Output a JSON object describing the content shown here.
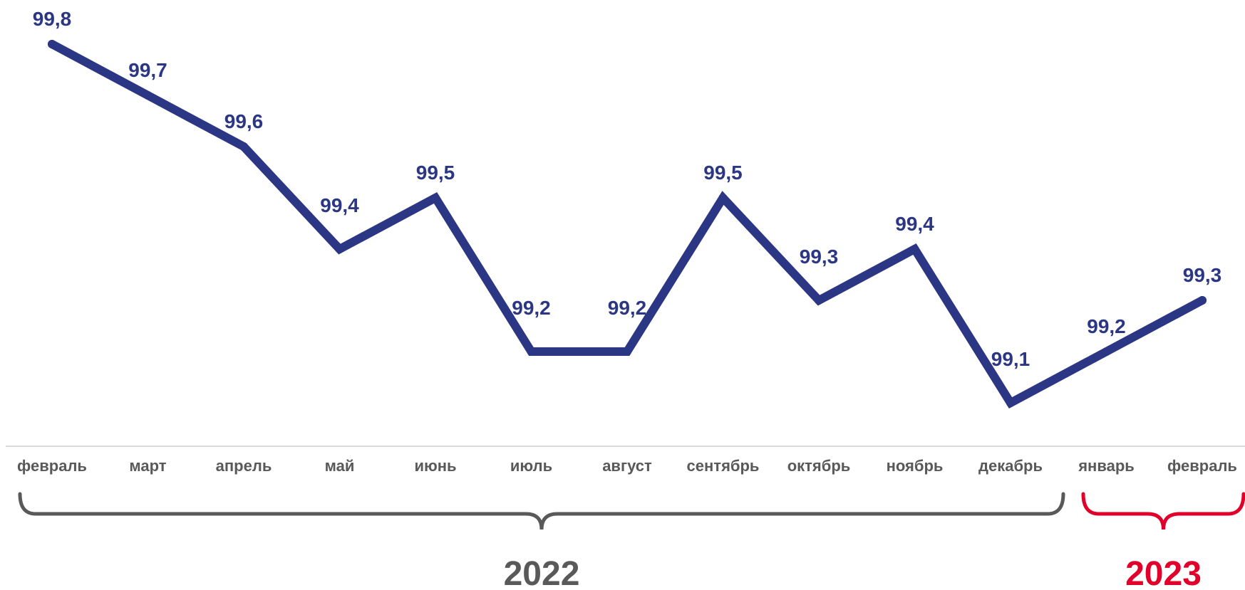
{
  "colors": {
    "line": "#2b3784",
    "axis": "#d9d9d9",
    "tick_text": "#595959",
    "year_2022": "#595959",
    "year_2023": "#e0002a"
  },
  "chart_data": {
    "type": "line",
    "title": "",
    "xlabel": "",
    "ylabel": "",
    "grid": false,
    "legend": "none",
    "categories": [
      "февраль",
      "март",
      "апрель",
      "май",
      "июнь",
      "июль",
      "август",
      "сентябрь",
      "октябрь",
      "ноябрь",
      "декабрь",
      "январь",
      "февраль"
    ],
    "series": [
      {
        "values": [
          99.8,
          99.7,
          99.6,
          99.4,
          99.5,
          99.2,
          99.2,
          99.5,
          99.3,
          99.4,
          99.1,
          99.2,
          99.3
        ],
        "labels": [
          "99,8",
          "99,7",
          "99,6",
          "99,4",
          "99,5",
          "99,2",
          "99,2",
          "99,5",
          "99,3",
          "99,4",
          "99,1",
          "99,2",
          "99,3"
        ]
      }
    ],
    "ylim": [
      98.8,
      99.85
    ],
    "year_groups": [
      {
        "label": "2022",
        "from_index": 0,
        "to_index": 10
      },
      {
        "label": "2023",
        "from_index": 11,
        "to_index": 12
      }
    ]
  }
}
